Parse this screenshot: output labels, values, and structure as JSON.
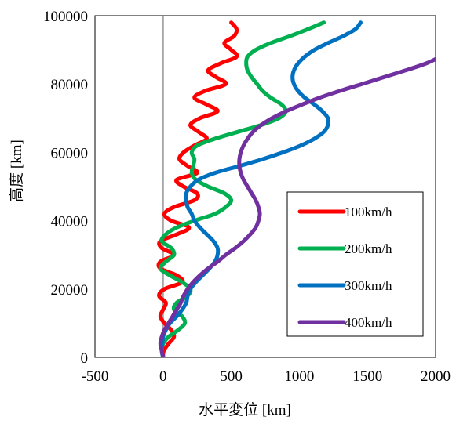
{
  "chart_data": {
    "type": "line",
    "title": "",
    "xlabel": "水平変位 [km]",
    "ylabel": "高度 [km]",
    "xlim": [
      -500,
      2000
    ],
    "ylim": [
      0,
      100000
    ],
    "x_ticks": [
      "-500",
      "0",
      "500",
      "1000",
      "1500",
      "2000"
    ],
    "y_ticks": [
      "0",
      "20000",
      "40000",
      "60000",
      "80000",
      "100000"
    ],
    "grid": false,
    "zero_line": true,
    "legend_position": "right-center",
    "series": [
      {
        "name": "100km/h",
        "color": "#ff0000",
        "points": [
          [
            0,
            0
          ],
          [
            5,
            2000
          ],
          [
            40,
            4000
          ],
          [
            80,
            6000
          ],
          [
            60,
            8000
          ],
          [
            10,
            10000
          ],
          [
            -20,
            12000
          ],
          [
            0,
            14000
          ],
          [
            20,
            16000
          ],
          [
            -30,
            18000
          ],
          [
            10,
            20000
          ],
          [
            140,
            22000
          ],
          [
            100,
            24000
          ],
          [
            -20,
            26000
          ],
          [
            -20,
            28000
          ],
          [
            80,
            30000
          ],
          [
            -10,
            32000
          ],
          [
            -20,
            34000
          ],
          [
            100,
            36000
          ],
          [
            190,
            38000
          ],
          [
            60,
            40000
          ],
          [
            10,
            42000
          ],
          [
            80,
            44000
          ],
          [
            230,
            46000
          ],
          [
            250,
            48000
          ],
          [
            150,
            50000
          ],
          [
            100,
            52000
          ],
          [
            250,
            54000
          ],
          [
            180,
            56000
          ],
          [
            120,
            58000
          ],
          [
            150,
            60000
          ],
          [
            230,
            62000
          ],
          [
            320,
            64000
          ],
          [
            260,
            66000
          ],
          [
            200,
            68000
          ],
          [
            270,
            70000
          ],
          [
            400,
            72000
          ],
          [
            320,
            74000
          ],
          [
            230,
            76000
          ],
          [
            310,
            78000
          ],
          [
            460,
            80000
          ],
          [
            390,
            82000
          ],
          [
            330,
            84000
          ],
          [
            420,
            86000
          ],
          [
            540,
            88000
          ],
          [
            500,
            90000
          ],
          [
            450,
            92000
          ],
          [
            520,
            94000
          ],
          [
            540,
            96000
          ],
          [
            500,
            98000
          ]
        ]
      },
      {
        "name": "200km/h",
        "color": "#00b050",
        "points": [
          [
            0,
            0
          ],
          [
            -10,
            2000
          ],
          [
            0,
            4000
          ],
          [
            40,
            6000
          ],
          [
            110,
            8000
          ],
          [
            160,
            10000
          ],
          [
            140,
            12000
          ],
          [
            80,
            14000
          ],
          [
            100,
            16000
          ],
          [
            180,
            18000
          ],
          [
            200,
            20000
          ],
          [
            140,
            22000
          ],
          [
            50,
            24000
          ],
          [
            -20,
            26000
          ],
          [
            20,
            28000
          ],
          [
            80,
            30000
          ],
          [
            60,
            32000
          ],
          [
            -10,
            34000
          ],
          [
            20,
            36000
          ],
          [
            100,
            38000
          ],
          [
            230,
            40000
          ],
          [
            380,
            42000
          ],
          [
            460,
            44000
          ],
          [
            500,
            46000
          ],
          [
            450,
            48000
          ],
          [
            330,
            50000
          ],
          [
            240,
            52000
          ],
          [
            210,
            54000
          ],
          [
            220,
            56000
          ],
          [
            230,
            58000
          ],
          [
            210,
            60000
          ],
          [
            250,
            62000
          ],
          [
            380,
            64000
          ],
          [
            550,
            66000
          ],
          [
            720,
            68000
          ],
          [
            850,
            70000
          ],
          [
            900,
            72000
          ],
          [
            870,
            74000
          ],
          [
            790,
            76000
          ],
          [
            730,
            78000
          ],
          [
            690,
            80000
          ],
          [
            650,
            82000
          ],
          [
            620,
            84000
          ],
          [
            610,
            86000
          ],
          [
            620,
            88000
          ],
          [
            680,
            90000
          ],
          [
            790,
            92000
          ],
          [
            930,
            94000
          ],
          [
            1060,
            96000
          ],
          [
            1180,
            98000
          ]
        ]
      },
      {
        "name": "300km/h",
        "color": "#0070c0",
        "points": [
          [
            0,
            0
          ],
          [
            -10,
            2000
          ],
          [
            -5,
            4000
          ],
          [
            0,
            6000
          ],
          [
            20,
            8000
          ],
          [
            50,
            10000
          ],
          [
            100,
            12000
          ],
          [
            140,
            14000
          ],
          [
            170,
            16000
          ],
          [
            180,
            18000
          ],
          [
            200,
            20000
          ],
          [
            240,
            22000
          ],
          [
            290,
            24000
          ],
          [
            340,
            26000
          ],
          [
            380,
            28000
          ],
          [
            400,
            30000
          ],
          [
            400,
            32000
          ],
          [
            370,
            34000
          ],
          [
            320,
            36000
          ],
          [
            270,
            38000
          ],
          [
            230,
            40000
          ],
          [
            210,
            42000
          ],
          [
            180,
            44000
          ],
          [
            170,
            46000
          ],
          [
            170,
            48000
          ],
          [
            200,
            50000
          ],
          [
            260,
            52000
          ],
          [
            380,
            54000
          ],
          [
            560,
            56000
          ],
          [
            730,
            58000
          ],
          [
            880,
            60000
          ],
          [
            1010,
            62000
          ],
          [
            1110,
            64000
          ],
          [
            1180,
            66000
          ],
          [
            1210,
            68000
          ],
          [
            1210,
            70000
          ],
          [
            1170,
            72000
          ],
          [
            1110,
            74000
          ],
          [
            1040,
            76000
          ],
          [
            990,
            78000
          ],
          [
            960,
            80000
          ],
          [
            950,
            82000
          ],
          [
            960,
            84000
          ],
          [
            990,
            86000
          ],
          [
            1040,
            88000
          ],
          [
            1110,
            90000
          ],
          [
            1210,
            92000
          ],
          [
            1320,
            94000
          ],
          [
            1410,
            96000
          ],
          [
            1450,
            98000
          ]
        ]
      },
      {
        "name": "400km/h",
        "color": "#7030a0",
        "points": [
          [
            0,
            0
          ],
          [
            -10,
            2000
          ],
          [
            -20,
            4000
          ],
          [
            -10,
            6000
          ],
          [
            10,
            8000
          ],
          [
            40,
            10000
          ],
          [
            70,
            12000
          ],
          [
            100,
            14000
          ],
          [
            130,
            16000
          ],
          [
            150,
            18000
          ],
          [
            180,
            20000
          ],
          [
            220,
            22000
          ],
          [
            270,
            24000
          ],
          [
            330,
            26000
          ],
          [
            400,
            28000
          ],
          [
            460,
            30000
          ],
          [
            530,
            32000
          ],
          [
            590,
            34000
          ],
          [
            640,
            36000
          ],
          [
            680,
            38000
          ],
          [
            700,
            40000
          ],
          [
            710,
            42000
          ],
          [
            700,
            44000
          ],
          [
            680,
            46000
          ],
          [
            650,
            48000
          ],
          [
            620,
            50000
          ],
          [
            590,
            52000
          ],
          [
            570,
            54000
          ],
          [
            560,
            56000
          ],
          [
            560,
            58000
          ],
          [
            570,
            60000
          ],
          [
            590,
            62000
          ],
          [
            620,
            64000
          ],
          [
            660,
            66000
          ],
          [
            720,
            68000
          ],
          [
            800,
            70000
          ],
          [
            900,
            72000
          ],
          [
            1020,
            74000
          ],
          [
            1150,
            76000
          ],
          [
            1300,
            78000
          ],
          [
            1460,
            80000
          ],
          [
            1620,
            82000
          ],
          [
            1780,
            84000
          ],
          [
            1930,
            86000
          ],
          [
            2010,
            87500
          ]
        ]
      }
    ]
  }
}
